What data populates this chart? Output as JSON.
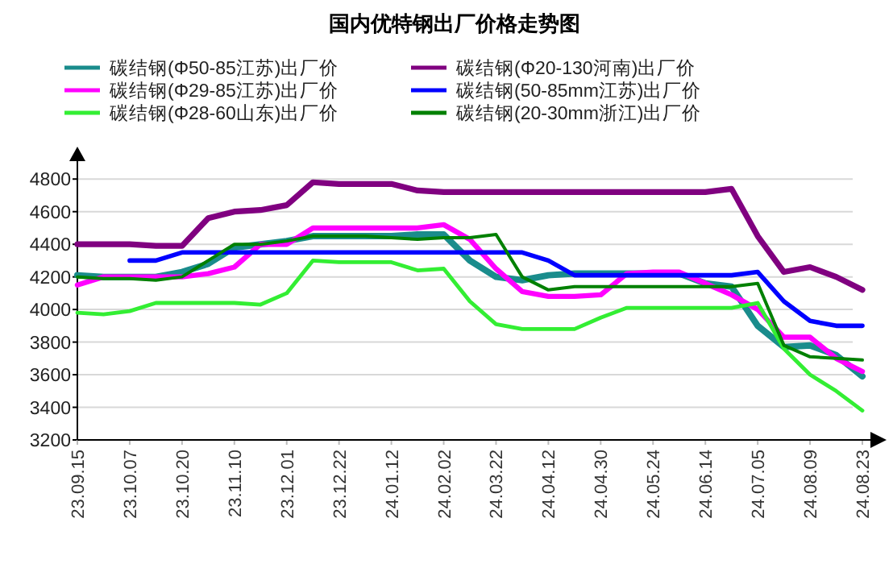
{
  "chart_data": {
    "type": "line",
    "title": "国内优特钢出厂价格走势图",
    "categories": [
      "23.09.15",
      null,
      "23.10.07",
      null,
      "23.10.20",
      null,
      "23.11.10",
      null,
      "23.12.01",
      null,
      "23.12.22",
      null,
      "24.01.12",
      null,
      "24.02.02",
      null,
      "24.03.22",
      null,
      "24.04.12",
      null,
      "24.04.30",
      null,
      "24.05.24",
      null,
      "24.06.14",
      null,
      "24.07.05",
      null,
      "24.08.09",
      null,
      "24.08.23"
    ],
    "series": [
      {
        "name": "碳结钢(Φ50-85江苏)出厂价",
        "color": "#1a8c8c",
        "values": [
          4210,
          4200,
          4200,
          4200,
          4230,
          4280,
          4380,
          4400,
          4420,
          4450,
          4450,
          4450,
          4450,
          4460,
          4460,
          4300,
          4200,
          4180,
          4210,
          4220,
          4220,
          4220,
          4220,
          4220,
          4160,
          4140,
          3900,
          3770,
          3780,
          3720,
          3590
        ]
      },
      {
        "name": "碳结钢(Φ20-130河南)出厂价",
        "color": "#800080",
        "values": [
          4400,
          4400,
          4400,
          4390,
          4390,
          4560,
          4600,
          4610,
          4640,
          4780,
          4770,
          4770,
          4770,
          4730,
          4720,
          4720,
          4720,
          4720,
          4720,
          4720,
          4720,
          4720,
          4720,
          4720,
          4720,
          4740,
          4450,
          4230,
          4260,
          4200,
          4120
        ]
      },
      {
        "name": "碳结钢(Φ29-85江苏)出厂价",
        "color": "#ff00ff",
        "values": [
          4150,
          4200,
          4200,
          4200,
          4200,
          4220,
          4260,
          4400,
          4400,
          4500,
          4500,
          4500,
          4500,
          4500,
          4520,
          4430,
          4250,
          4110,
          4080,
          4080,
          4090,
          4220,
          4230,
          4230,
          4160,
          4090,
          4000,
          3830,
          3830,
          3700,
          3620
        ]
      },
      {
        "name": "碳结钢(50-85mm江苏)出厂价",
        "color": "#0000ff",
        "values": [
          null,
          null,
          4300,
          4300,
          4350,
          4350,
          4350,
          4350,
          4350,
          4350,
          4350,
          4350,
          4350,
          4350,
          4350,
          4350,
          4350,
          4350,
          4300,
          4210,
          4210,
          4210,
          4210,
          4210,
          4210,
          4210,
          4230,
          4050,
          3930,
          3900,
          3900
        ]
      },
      {
        "name": "碳结钢(Φ28-60山东)出厂价",
        "color": "#33ee33",
        "values": [
          3980,
          3970,
          3990,
          4040,
          4040,
          4040,
          4040,
          4030,
          4100,
          4300,
          4290,
          4290,
          4290,
          4240,
          4250,
          4050,
          3910,
          3880,
          3880,
          3880,
          3950,
          4010,
          4010,
          4010,
          4010,
          4010,
          4040,
          3760,
          3600,
          3500,
          3380
        ]
      },
      {
        "name": "碳结钢(20-30mm浙江)出厂价",
        "color": "#008000",
        "values": [
          4200,
          4190,
          4190,
          4180,
          4200,
          4300,
          4400,
          4400,
          4420,
          4450,
          4450,
          4450,
          4440,
          4430,
          4440,
          4440,
          4460,
          4200,
          4120,
          4140,
          4140,
          4140,
          4140,
          4140,
          4140,
          4140,
          4160,
          3780,
          3710,
          3700,
          3690
        ]
      }
    ],
    "ylim": [
      3200,
      4900
    ],
    "yticks": [
      3200,
      3400,
      3600,
      3800,
      4000,
      4200,
      4400,
      4600,
      4800
    ],
    "grid": "y",
    "legend": "top"
  }
}
